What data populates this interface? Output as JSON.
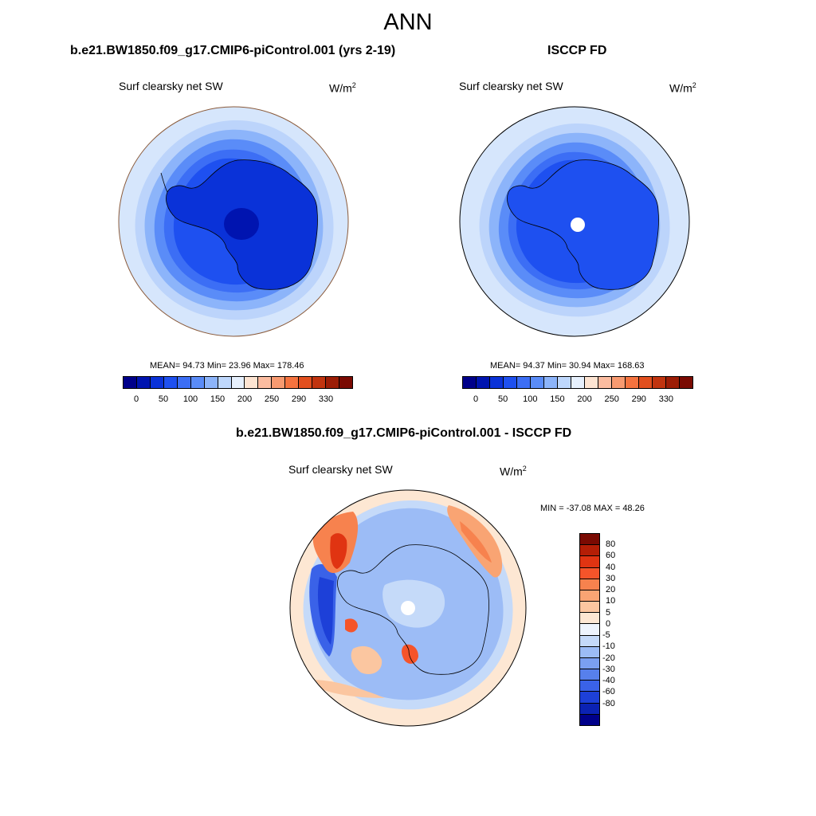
{
  "figure": {
    "title": "ANN",
    "units_base": "W/m",
    "units_exp": "2",
    "variable": "Surf clearsky net SW"
  },
  "panels": {
    "model": {
      "title": "b.e21.BW1850.f09_g17.CMIP6-piControl.001 (yrs 2-19)",
      "stats": "MEAN=  94.73  Min=  23.96  Max= 178.46"
    },
    "obs": {
      "title": "ISCCP FD",
      "stats": "MEAN=  94.37  Min=  30.94  Max= 168.63"
    },
    "diff": {
      "title": "b.e21.BW1850.f09_g17.CMIP6-piControl.001 - ISCCP FD",
      "stats": "MIN = -37.08 MAX =  48.26"
    }
  },
  "colorbars": {
    "abs": {
      "colors": [
        "#00008a",
        "#0014b0",
        "#0a32d8",
        "#1e50f0",
        "#3c6ef5",
        "#5a8cf8",
        "#8cb4fa",
        "#bed7fc",
        "#e6f0fd",
        "#fde4d2",
        "#fbbca0",
        "#f89a70",
        "#f5733f",
        "#e24f1e",
        "#c1340f",
        "#9c1d06",
        "#7a0a02"
      ],
      "labels": [
        "0",
        "50",
        "100",
        "150",
        "200",
        "250",
        "290",
        "330"
      ]
    },
    "diff": {
      "colors": [
        "#7a0a02",
        "#b41e06",
        "#e03412",
        "#f5542a",
        "#f7824e",
        "#f9a473",
        "#fbc6a0",
        "#fde7d3",
        "#eef4fd",
        "#c5daf9",
        "#9cbcf6",
        "#7a9ff1",
        "#5780ec",
        "#3a62e8",
        "#1d40d8",
        "#0b22b3",
        "#00008a"
      ],
      "labels": [
        "80",
        "60",
        "40",
        "30",
        "20",
        "10",
        "5",
        "0",
        "-5",
        "-10",
        "-20",
        "-30",
        "-40",
        "-60",
        "-80"
      ]
    }
  }
}
